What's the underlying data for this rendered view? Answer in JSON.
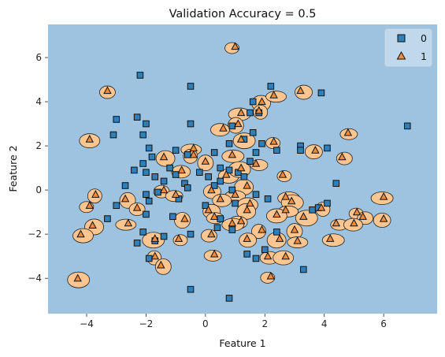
{
  "chart_data": {
    "type": "scatter",
    "title": "Validation Accuracy = 0.5",
    "xlabel": "Feature 1",
    "ylabel": "Feature 2",
    "xlim": [
      -5.3,
      7.8
    ],
    "ylim": [
      -5.6,
      7.5
    ],
    "xticks": [
      -4,
      -2,
      0,
      2,
      4,
      6
    ],
    "yticks": [
      -4,
      -2,
      0,
      2,
      4,
      6
    ],
    "grid": false,
    "legend_position": "top-right",
    "background_region_color": "#9dc3e0",
    "class1_region_color": "#fdc590",
    "series": [
      {
        "name": "0",
        "marker": "square",
        "color": "#2f7fb8",
        "points": [
          [
            -2.2,
            5.2
          ],
          [
            -0.5,
            4.7
          ],
          [
            2.2,
            4.7
          ],
          [
            3.9,
            4.4
          ],
          [
            1.6,
            4.0
          ],
          [
            1.5,
            3.5
          ],
          [
            1.8,
            3.5
          ],
          [
            -3.0,
            3.2
          ],
          [
            -2.3,
            3.3
          ],
          [
            -2.0,
            3.0
          ],
          [
            -0.5,
            3.0
          ],
          [
            0.9,
            2.9
          ],
          [
            1.6,
            2.6
          ],
          [
            6.8,
            2.9
          ],
          [
            -3.1,
            2.5
          ],
          [
            -2.1,
            2.5
          ],
          [
            1.3,
            2.3
          ],
          [
            0.8,
            2.1
          ],
          [
            1.9,
            2.1
          ],
          [
            3.2,
            2.0
          ],
          [
            3.2,
            1.8
          ],
          [
            4.1,
            1.9
          ],
          [
            -1.9,
            1.9
          ],
          [
            -1.0,
            1.8
          ],
          [
            0.3,
            1.7
          ],
          [
            1.7,
            1.7
          ],
          [
            -1.8,
            1.5
          ],
          [
            -0.6,
            1.6
          ],
          [
            2.4,
            1.8
          ],
          [
            -2.1,
            1.2
          ],
          [
            -1.2,
            1.0
          ],
          [
            0.5,
            1.0
          ],
          [
            1.5,
            1.3
          ],
          [
            -2.4,
            0.9
          ],
          [
            -2.0,
            0.8
          ],
          [
            -1.7,
            0.6
          ],
          [
            -1.0,
            0.7
          ],
          [
            -0.2,
            0.8
          ],
          [
            0.8,
            0.9
          ],
          [
            1.1,
            0.8
          ],
          [
            -1.4,
            0.4
          ],
          [
            -0.7,
            0.3
          ],
          [
            0.1,
            0.6
          ],
          [
            0.5,
            0.4
          ],
          [
            1.3,
            0.6
          ],
          [
            -2.7,
            0.2
          ],
          [
            -2.0,
            -0.2
          ],
          [
            -1.6,
            -0.1
          ],
          [
            -0.6,
            0.1
          ],
          [
            0.3,
            0.2
          ],
          [
            0.9,
            0.0
          ],
          [
            1.7,
            -0.2
          ],
          [
            4.4,
            0.3
          ],
          [
            -3.0,
            -0.7
          ],
          [
            -1.9,
            -0.5
          ],
          [
            -0.9,
            -0.4
          ],
          [
            0.0,
            -0.7
          ],
          [
            1.0,
            -0.6
          ],
          [
            2.1,
            -0.4
          ],
          [
            3.6,
            -0.9
          ],
          [
            -3.3,
            -1.3
          ],
          [
            -2.0,
            -1.1
          ],
          [
            -1.1,
            -1.2
          ],
          [
            0.5,
            -1.3
          ],
          [
            4.1,
            -0.6
          ],
          [
            -2.1,
            -1.9
          ],
          [
            -1.7,
            -2.3
          ],
          [
            0.4,
            -1.7
          ],
          [
            2.4,
            -1.9
          ],
          [
            3.8,
            -0.8
          ],
          [
            -2.3,
            -2.4
          ],
          [
            -1.9,
            -3.1
          ],
          [
            -1.4,
            -2.1
          ],
          [
            -0.5,
            -2.0
          ],
          [
            0.9,
            -1.8
          ],
          [
            2.0,
            -2.7
          ],
          [
            1.4,
            -2.9
          ],
          [
            1.7,
            -3.1
          ],
          [
            3.3,
            -3.6
          ],
          [
            -0.5,
            -4.5
          ],
          [
            0.8,
            -4.9
          ]
        ]
      },
      {
        "name": "1",
        "marker": "triangle",
        "color": "#f28a3c",
        "points": [
          [
            1.0,
            6.5
          ],
          [
            -3.3,
            4.5
          ],
          [
            3.2,
            4.5
          ],
          [
            1.9,
            4.0
          ],
          [
            2.3,
            4.3
          ],
          [
            1.2,
            3.5
          ],
          [
            1.8,
            3.6
          ],
          [
            1.1,
            3.0
          ],
          [
            4.8,
            2.6
          ],
          [
            0.6,
            2.8
          ],
          [
            -3.9,
            2.3
          ],
          [
            1.2,
            2.3
          ],
          [
            2.3,
            2.2
          ],
          [
            4.6,
            1.5
          ],
          [
            3.7,
            1.8
          ],
          [
            -1.4,
            1.5
          ],
          [
            -0.4,
            1.9
          ],
          [
            0.9,
            1.6
          ],
          [
            -0.4,
            1.6
          ],
          [
            0.0,
            1.3
          ],
          [
            1.7,
            1.2
          ],
          [
            -0.8,
            0.9
          ],
          [
            0.7,
            0.7
          ],
          [
            1.2,
            1.0
          ],
          [
            2.6,
            0.7
          ],
          [
            -1.4,
            0.0
          ],
          [
            0.2,
            0.0
          ],
          [
            1.4,
            0.2
          ],
          [
            1.0,
            -0.2
          ],
          [
            2.7,
            -0.3
          ],
          [
            -3.7,
            -0.2
          ],
          [
            -2.7,
            -0.4
          ],
          [
            -1.0,
            -0.2
          ],
          [
            0.5,
            -0.4
          ],
          [
            1.5,
            -0.6
          ],
          [
            2.9,
            -0.5
          ],
          [
            -3.9,
            -0.7
          ],
          [
            -2.3,
            -0.8
          ],
          [
            0.1,
            -0.9
          ],
          [
            1.4,
            -0.9
          ],
          [
            2.7,
            -0.9
          ],
          [
            6.0,
            -0.3
          ],
          [
            3.9,
            -0.8
          ],
          [
            -0.7,
            -1.3
          ],
          [
            0.3,
            -1.2
          ],
          [
            1.2,
            -1.4
          ],
          [
            2.4,
            -1.1
          ],
          [
            3.3,
            -1.2
          ],
          [
            5.1,
            -1.0
          ],
          [
            5.3,
            -1.2
          ],
          [
            6.0,
            -1.3
          ],
          [
            -3.8,
            -1.6
          ],
          [
            -2.6,
            -1.5
          ],
          [
            0.9,
            -1.5
          ],
          [
            1.9,
            -1.8
          ],
          [
            3.0,
            -1.8
          ],
          [
            4.4,
            -1.5
          ],
          [
            5.0,
            -1.5
          ],
          [
            -4.2,
            -2.0
          ],
          [
            -1.7,
            -2.2
          ],
          [
            -0.9,
            -2.2
          ],
          [
            0.2,
            -2.0
          ],
          [
            1.4,
            -2.2
          ],
          [
            2.5,
            -2.2
          ],
          [
            3.1,
            -2.3
          ],
          [
            4.2,
            -2.2
          ],
          [
            -1.7,
            -3.0
          ],
          [
            -1.5,
            -3.4
          ],
          [
            0.3,
            -2.9
          ],
          [
            2.1,
            -3.0
          ],
          [
            2.7,
            -3.0
          ],
          [
            -4.3,
            -4.0
          ],
          [
            2.2,
            -3.9
          ]
        ]
      }
    ]
  }
}
